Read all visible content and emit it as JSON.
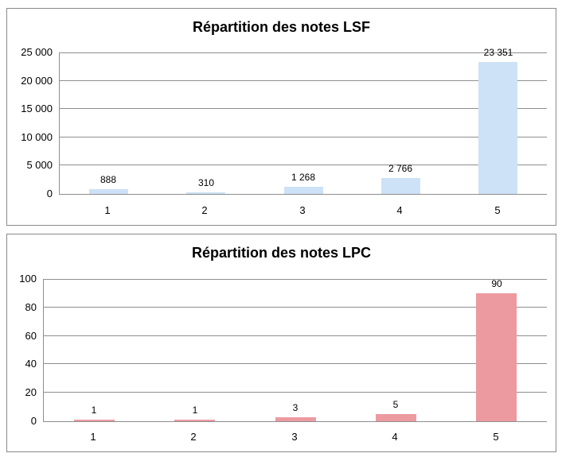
{
  "colors": {
    "background": "#FFFFFF",
    "panel_border": "#898989",
    "gridline": "#8E8E8E",
    "axis_line": "#8E8E8E",
    "text": "#000000",
    "lsf_bar": "#CDE2F6",
    "lpc_bar": "#EC9AA0"
  },
  "chart_data": [
    {
      "type": "bar",
      "title": "Répartition des notes LSF",
      "categories": [
        "1",
        "2",
        "3",
        "4",
        "5"
      ],
      "values": [
        888,
        310,
        1268,
        2766,
        23351
      ],
      "value_labels": [
        "888",
        "310",
        "1 268",
        "2 766",
        "23 351"
      ],
      "xlabel": "",
      "ylabel": "",
      "ylim": [
        0,
        25000
      ],
      "yticks": [
        {
          "value": 0,
          "label": "0"
        },
        {
          "value": 5000,
          "label": "5 000"
        },
        {
          "value": 10000,
          "label": "10 000"
        },
        {
          "value": 15000,
          "label": "15 000"
        },
        {
          "value": 20000,
          "label": "20 000"
        },
        {
          "value": 25000,
          "label": "25 000"
        }
      ],
      "bar_color": "#CDE2F6",
      "grid": true,
      "legend": "none"
    },
    {
      "type": "bar",
      "title": "Répartition des notes LPC",
      "categories": [
        "1",
        "2",
        "3",
        "4",
        "5"
      ],
      "values": [
        1,
        1,
        3,
        5,
        90
      ],
      "value_labels": [
        "1",
        "1",
        "3",
        "5",
        "90"
      ],
      "xlabel": "",
      "ylabel": "",
      "ylim": [
        0,
        100
      ],
      "yticks": [
        {
          "value": 0,
          "label": "0"
        },
        {
          "value": 20,
          "label": "20"
        },
        {
          "value": 40,
          "label": "40"
        },
        {
          "value": 60,
          "label": "60"
        },
        {
          "value": 80,
          "label": "80"
        },
        {
          "value": 100,
          "label": "100"
        }
      ],
      "bar_color": "#EC9AA0",
      "grid": true,
      "legend": "none"
    }
  ]
}
